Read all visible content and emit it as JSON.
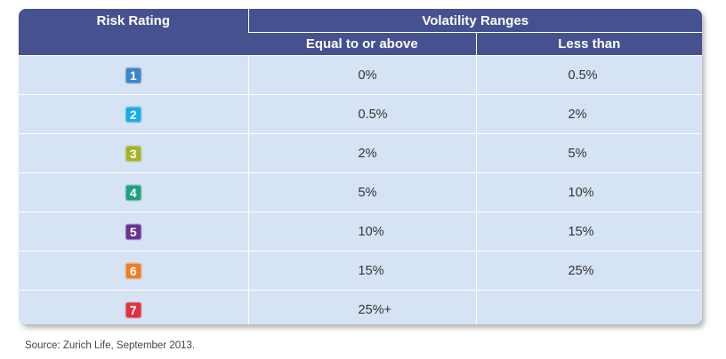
{
  "table": {
    "header": {
      "risk_rating": "Risk Rating",
      "volatility_ranges": "Volatility Ranges",
      "equal_or_above": "Equal to or above",
      "less_than": "Less than"
    },
    "rows": [
      {
        "rating": "1",
        "color": "#3a86c8",
        "equal_or_above": "0%",
        "less_than": "0.5%"
      },
      {
        "rating": "2",
        "color": "#16aee4",
        "equal_or_above": "0.5%",
        "less_than": "2%"
      },
      {
        "rating": "3",
        "color": "#a5b325",
        "equal_or_above": "2%",
        "less_than": "5%"
      },
      {
        "rating": "4",
        "color": "#1fa17e",
        "equal_or_above": "5%",
        "less_than": "10%"
      },
      {
        "rating": "5",
        "color": "#6a3291",
        "equal_or_above": "10%",
        "less_than": "15%"
      },
      {
        "rating": "6",
        "color": "#ef7d24",
        "equal_or_above": "15%",
        "less_than": "25%"
      },
      {
        "rating": "7",
        "color": "#e0313d",
        "equal_or_above": "25%+",
        "less_than": ""
      }
    ]
  },
  "source_note": "Source: Zurich Life, September 2013.",
  "colors": {
    "header_bg": "#46518f",
    "body_bg": "#d6e3f4"
  }
}
